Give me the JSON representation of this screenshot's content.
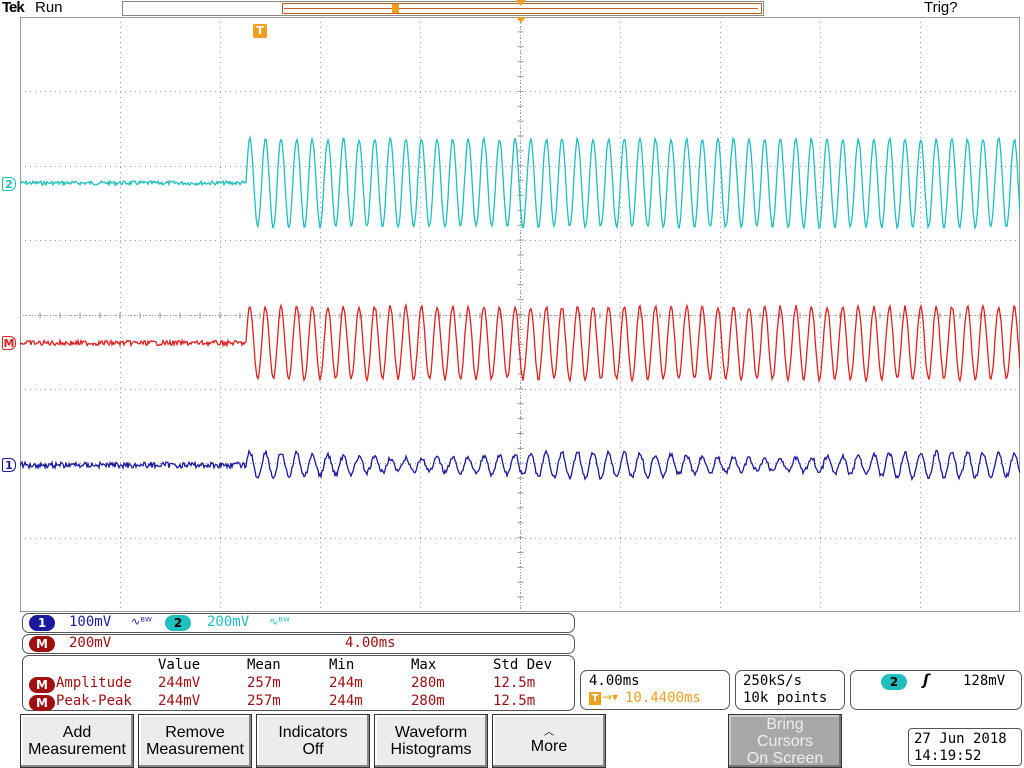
{
  "header": {
    "brand": "Tek",
    "run_state": "Run",
    "trigger_status": "Trig?"
  },
  "markers": {
    "trigger": "T",
    "ch2": "2",
    "math": "M",
    "ch1": "1"
  },
  "colors": {
    "ch1": "#1a1aa0",
    "ch2": "#1fbfbf",
    "math": "#e02020",
    "trigger": "#f0a020",
    "grid": "#9a9a9a"
  },
  "readouts": {
    "ch1": {
      "label": "1",
      "scale": "100mV",
      "coupling_icon": "bandwidth-limit-icon"
    },
    "ch2": {
      "label": "2",
      "scale": "200mV",
      "coupling_icon": "bandwidth-limit-icon"
    },
    "math": {
      "label": "M",
      "scale": "200mV",
      "timebase": "4.00ms"
    }
  },
  "measurements": {
    "headers": [
      "Value",
      "Mean",
      "Min",
      "Max",
      "Std Dev"
    ],
    "rows": [
      {
        "source": "M",
        "name": "Amplitude",
        "value": "244mV",
        "mean": "257m",
        "min": "244m",
        "max": "280m",
        "std": "12.5m"
      },
      {
        "source": "M",
        "name": "Peak-Peak",
        "value": "244mV",
        "mean": "257m",
        "min": "244m",
        "max": "280m",
        "std": "12.5m"
      }
    ]
  },
  "horizontal": {
    "scale": "4.00ms",
    "trigger_icon": "T",
    "position": "10.4400ms"
  },
  "acquisition": {
    "sample_rate": "250kS/s",
    "record_length": "10k points"
  },
  "trigger": {
    "source": "2",
    "slope_icon": "rising-edge-icon",
    "level": "128mV"
  },
  "buttons": {
    "add": [
      "Add",
      "Measurement"
    ],
    "remove": [
      "Remove",
      "Measurement"
    ],
    "indicators": [
      "Indicators",
      "Off"
    ],
    "histograms": [
      "Waveform",
      "Histograms"
    ],
    "more": "More",
    "cursors": [
      "Bring",
      "Cursors",
      "On Screen"
    ]
  },
  "datetime": {
    "date": "27 Jun 2018",
    "time": "14:19:52"
  }
}
